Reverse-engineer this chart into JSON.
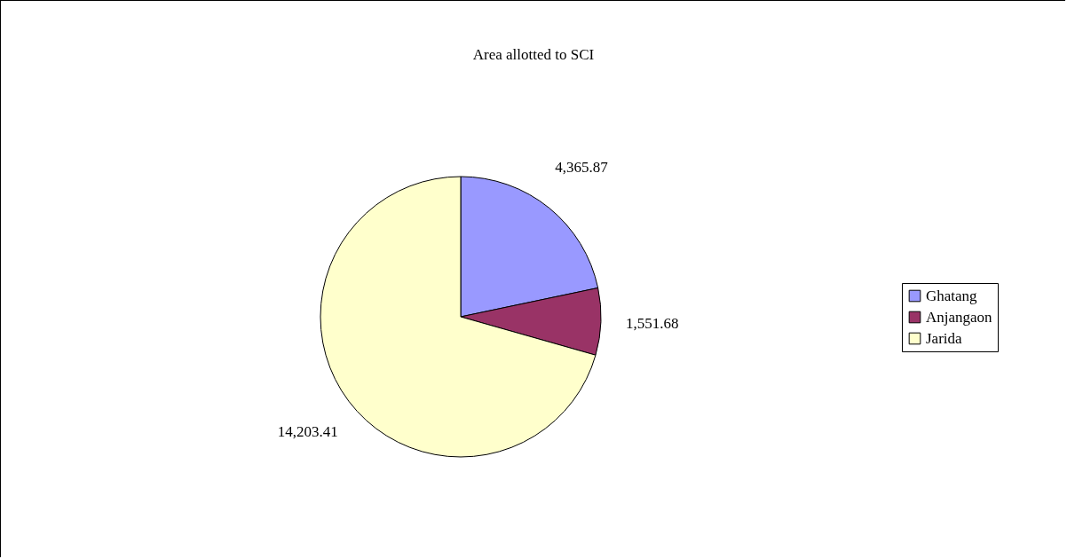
{
  "chart_data": {
    "type": "pie",
    "title": "Area allotted to SCI",
    "categories": [
      "Ghatang",
      "Anjangaon",
      "Jarida"
    ],
    "values": [
      4365.87,
      1551.68,
      14203.41
    ],
    "value_labels": [
      "4,365.87",
      "1,551.68",
      "14,203.41"
    ],
    "colors": [
      "#9999ff",
      "#993366",
      "#ffffcc"
    ],
    "legend": "right"
  }
}
